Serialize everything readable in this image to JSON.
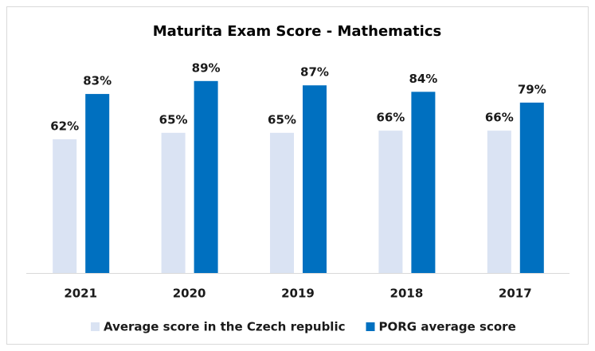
{
  "chart_data": {
    "type": "bar",
    "title": "Maturita Exam Score - Mathematics",
    "categories": [
      "2021",
      "2020",
      "2019",
      "2018",
      "2017"
    ],
    "series": [
      {
        "name": "Average score in the Czech republic",
        "color": "#dae3f3",
        "values": [
          62,
          65,
          65,
          66,
          66
        ],
        "value_labels": [
          "62%",
          "65%",
          "65%",
          "66%",
          "66%"
        ]
      },
      {
        "name": "PORG average score",
        "color": "#0070c0",
        "values": [
          83,
          89,
          87,
          84,
          79
        ],
        "value_labels": [
          "83%",
          "89%",
          "87%",
          "84%",
          "79%"
        ]
      }
    ],
    "legend": "bottom"
  }
}
